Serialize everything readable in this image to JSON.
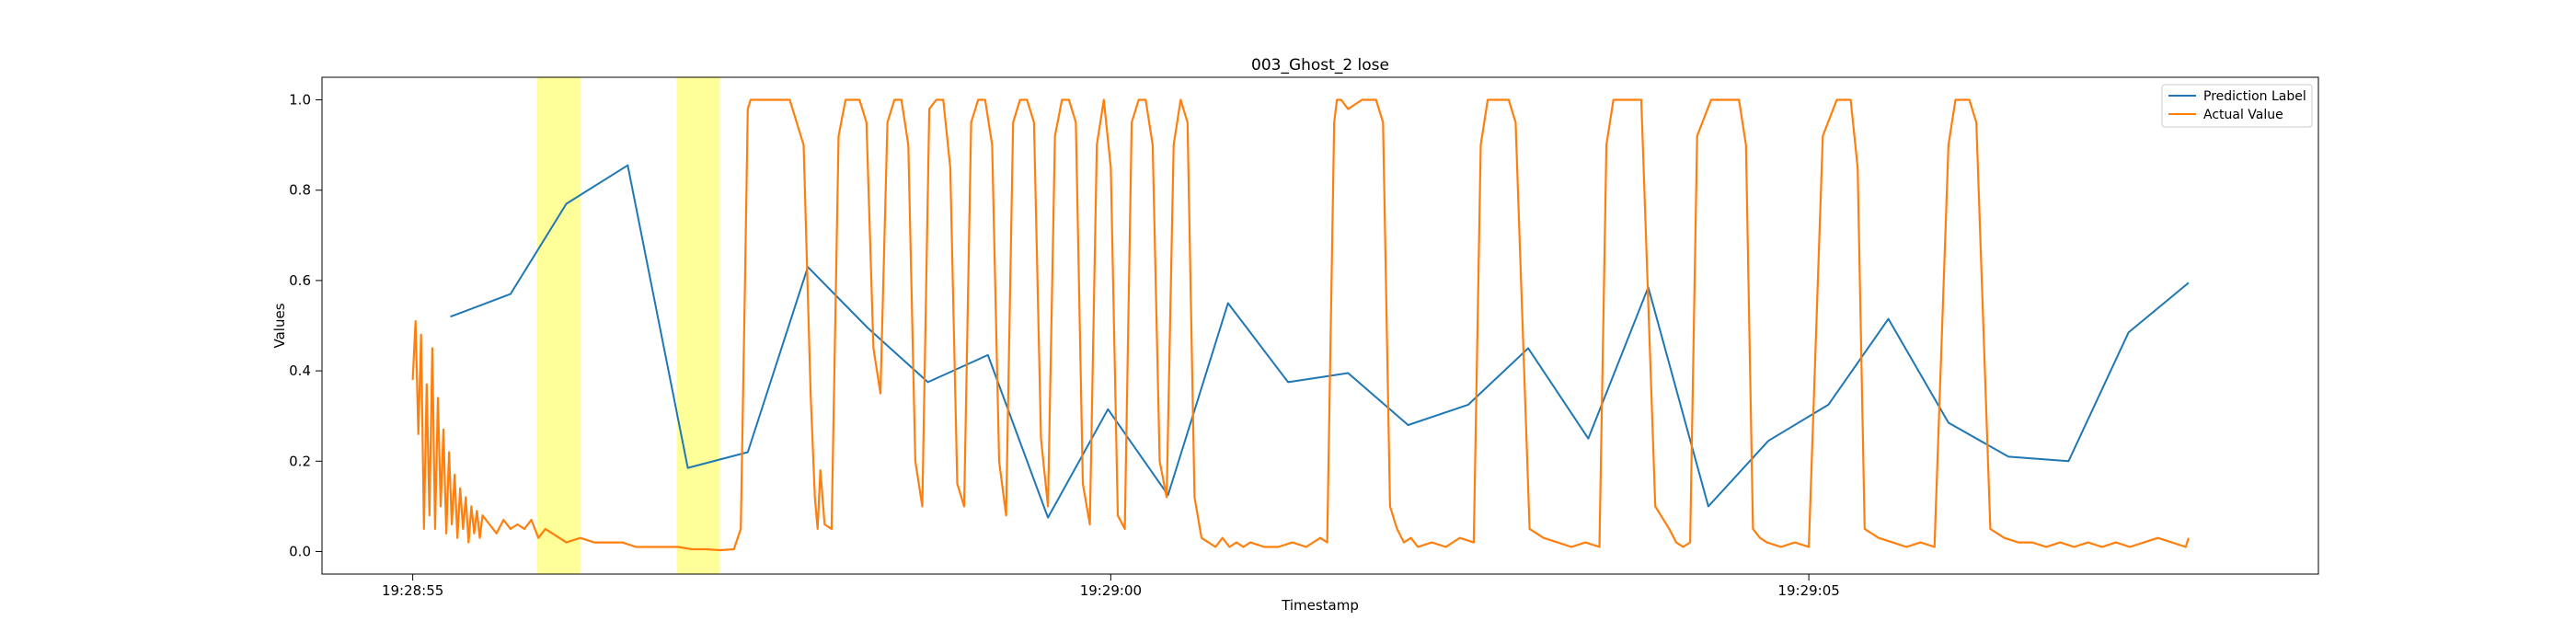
{
  "chart_data": {
    "type": "line",
    "title": "003_Ghost_2 lose",
    "xlabel": "Timestamp",
    "ylabel": "Values",
    "xlim": [
      -0.65,
      13.65
    ],
    "ylim": [
      -0.05,
      1.05
    ],
    "grid": false,
    "legend_position": "top-right",
    "x_ticks": [
      {
        "value": 0,
        "label": "19:28:55"
      },
      {
        "value": 5,
        "label": "19:29:00"
      },
      {
        "value": 10,
        "label": "19:29:05"
      }
    ],
    "y_ticks": [
      {
        "value": 0.0,
        "label": "0.0"
      },
      {
        "value": 0.2,
        "label": "0.2"
      },
      {
        "value": 0.4,
        "label": "0.4"
      },
      {
        "value": 0.6,
        "label": "0.6"
      },
      {
        "value": 0.8,
        "label": "0.8"
      },
      {
        "value": 1.0,
        "label": "1.0"
      }
    ],
    "highlight_spans": [
      {
        "x0": 0.89,
        "x1": 1.2,
        "color": "#ffff99"
      },
      {
        "x0": 1.89,
        "x1": 2.2,
        "color": "#ffff99"
      }
    ],
    "series": [
      {
        "name": "Prediction Label",
        "color": "#1f77b4",
        "x": [
          0.27,
          0.7,
          1.1,
          1.54,
          1.97,
          2.4,
          2.83,
          3.26,
          3.69,
          4.12,
          4.55,
          4.98,
          5.41,
          5.84,
          6.27,
          6.7,
          7.13,
          7.56,
          7.99,
          8.42,
          8.85,
          9.28,
          9.71,
          10.14,
          10.57,
          11.0,
          11.43,
          11.86,
          12.29,
          12.72
        ],
        "y": [
          0.52,
          0.57,
          0.77,
          0.855,
          0.185,
          0.22,
          0.63,
          0.495,
          0.375,
          0.435,
          0.075,
          0.315,
          0.125,
          0.55,
          0.375,
          0.395,
          0.28,
          0.325,
          0.45,
          0.25,
          0.585,
          0.1,
          0.245,
          0.325,
          0.515,
          0.285,
          0.21,
          0.2,
          0.485,
          0.595
        ]
      },
      {
        "name": "Actual Value",
        "color": "#ff7f0e",
        "x": [
          0.0,
          0.02,
          0.04,
          0.06,
          0.08,
          0.1,
          0.12,
          0.14,
          0.16,
          0.18,
          0.2,
          0.22,
          0.24,
          0.26,
          0.28,
          0.3,
          0.32,
          0.34,
          0.36,
          0.38,
          0.4,
          0.42,
          0.44,
          0.46,
          0.48,
          0.5,
          0.55,
          0.6,
          0.65,
          0.7,
          0.75,
          0.8,
          0.85,
          0.9,
          0.95,
          1.0,
          1.1,
          1.2,
          1.3,
          1.4,
          1.5,
          1.6,
          1.7,
          1.8,
          1.9,
          2.0,
          2.1,
          2.2,
          2.3,
          2.35,
          2.38,
          2.4,
          2.42,
          2.45,
          2.5,
          2.6,
          2.7,
          2.8,
          2.85,
          2.88,
          2.9,
          2.92,
          2.95,
          3.0,
          3.05,
          3.1,
          3.15,
          3.2,
          3.25,
          3.3,
          3.35,
          3.4,
          3.45,
          3.5,
          3.55,
          3.6,
          3.65,
          3.7,
          3.75,
          3.8,
          3.85,
          3.9,
          3.95,
          4.0,
          4.05,
          4.1,
          4.15,
          4.2,
          4.25,
          4.3,
          4.35,
          4.4,
          4.45,
          4.5,
          4.55,
          4.6,
          4.65,
          4.7,
          4.75,
          4.8,
          4.85,
          4.9,
          4.95,
          5.0,
          5.05,
          5.1,
          5.15,
          5.2,
          5.25,
          5.3,
          5.35,
          5.4,
          5.45,
          5.5,
          5.55,
          5.6,
          5.65,
          5.7,
          5.75,
          5.8,
          5.85,
          5.9,
          5.95,
          6.0,
          6.1,
          6.2,
          6.3,
          6.4,
          6.5,
          6.55,
          6.6,
          6.62,
          6.65,
          6.7,
          6.8,
          6.9,
          6.95,
          7.0,
          7.05,
          7.1,
          7.15,
          7.2,
          7.3,
          7.4,
          7.5,
          7.6,
          7.65,
          7.7,
          7.75,
          7.8,
          7.85,
          7.9,
          8.0,
          8.1,
          8.2,
          8.3,
          8.4,
          8.5,
          8.55,
          8.6,
          8.65,
          8.7,
          8.8,
          8.9,
          9.0,
          9.05,
          9.1,
          9.15,
          9.2,
          9.3,
          9.4,
          9.5,
          9.55,
          9.6,
          9.65,
          9.7,
          9.8,
          9.9,
          10.0,
          10.1,
          10.2,
          10.25,
          10.3,
          10.35,
          10.4,
          10.5,
          10.6,
          10.7,
          10.8,
          10.9,
          11.0,
          11.05,
          11.1,
          11.15,
          11.2,
          11.3,
          11.4,
          11.5,
          11.6,
          11.7,
          11.8,
          11.9,
          12.0,
          12.1,
          12.2,
          12.3,
          12.4,
          12.5,
          12.6,
          12.7,
          12.72
        ],
        "y": [
          0.38,
          0.51,
          0.26,
          0.48,
          0.05,
          0.37,
          0.08,
          0.45,
          0.05,
          0.34,
          0.1,
          0.27,
          0.04,
          0.22,
          0.06,
          0.17,
          0.03,
          0.14,
          0.05,
          0.12,
          0.02,
          0.1,
          0.04,
          0.09,
          0.03,
          0.08,
          0.06,
          0.04,
          0.07,
          0.05,
          0.06,
          0.05,
          0.07,
          0.03,
          0.05,
          0.04,
          0.02,
          0.03,
          0.02,
          0.02,
          0.02,
          0.01,
          0.01,
          0.01,
          0.01,
          0.005,
          0.005,
          0.003,
          0.005,
          0.05,
          0.6,
          0.98,
          1.0,
          1.0,
          1.0,
          1.0,
          1.0,
          0.9,
          0.35,
          0.12,
          0.05,
          0.18,
          0.06,
          0.05,
          0.92,
          1.0,
          1.0,
          1.0,
          0.95,
          0.45,
          0.35,
          0.95,
          1.0,
          1.0,
          0.9,
          0.2,
          0.1,
          0.98,
          1.0,
          1.0,
          0.85,
          0.15,
          0.1,
          0.95,
          1.0,
          1.0,
          0.9,
          0.2,
          0.08,
          0.95,
          1.0,
          1.0,
          0.95,
          0.25,
          0.1,
          0.92,
          1.0,
          1.0,
          0.95,
          0.15,
          0.06,
          0.9,
          1.0,
          0.85,
          0.08,
          0.05,
          0.95,
          1.0,
          1.0,
          0.9,
          0.2,
          0.12,
          0.9,
          1.0,
          0.95,
          0.12,
          0.03,
          0.02,
          0.01,
          0.03,
          0.01,
          0.02,
          0.01,
          0.02,
          0.01,
          0.01,
          0.02,
          0.01,
          0.03,
          0.02,
          0.95,
          1.0,
          1.0,
          0.98,
          1.0,
          1.0,
          0.95,
          0.1,
          0.05,
          0.02,
          0.03,
          0.01,
          0.02,
          0.01,
          0.03,
          0.02,
          0.9,
          1.0,
          1.0,
          1.0,
          1.0,
          0.95,
          0.05,
          0.03,
          0.02,
          0.01,
          0.02,
          0.01,
          0.9,
          1.0,
          1.0,
          1.0,
          1.0,
          0.1,
          0.05,
          0.02,
          0.01,
          0.02,
          0.92,
          1.0,
          1.0,
          1.0,
          0.9,
          0.05,
          0.03,
          0.02,
          0.01,
          0.02,
          0.01,
          0.92,
          1.0,
          1.0,
          1.0,
          0.85,
          0.05,
          0.03,
          0.02,
          0.01,
          0.02,
          0.01,
          0.9,
          1.0,
          1.0,
          1.0,
          0.95,
          0.05,
          0.03,
          0.02,
          0.02,
          0.01,
          0.02,
          0.01,
          0.02,
          0.01,
          0.02,
          0.01,
          0.02,
          0.03,
          0.02,
          0.01,
          0.03
        ]
      }
    ]
  }
}
